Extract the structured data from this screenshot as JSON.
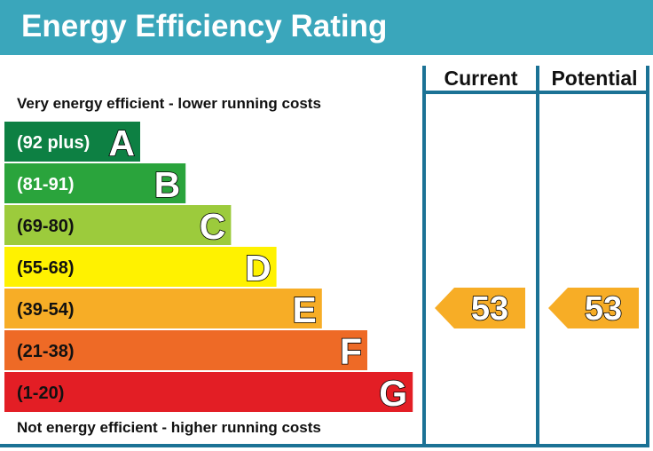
{
  "title": "Energy Efficiency Rating",
  "notes": {
    "top": "Very energy efficient - lower running costs",
    "bottom": "Not energy efficient - higher running costs"
  },
  "columns": {
    "current": "Current",
    "potential": "Potential"
  },
  "colors": {
    "header": "#3aa6bb",
    "border": "#1b7295",
    "A": "#0d8043",
    "B": "#2aa43c",
    "C": "#9ccb3c",
    "D": "#fff200",
    "E": "#f7ad26",
    "F": "#ee6a26",
    "G": "#e31e25",
    "arrow": "#f7ad26"
  },
  "chart_data": {
    "type": "table",
    "bands": [
      {
        "letter": "A",
        "range": "(92 plus)",
        "text_color": "#ffffff"
      },
      {
        "letter": "B",
        "range": "(81-91)",
        "text_color": "#ffffff"
      },
      {
        "letter": "C",
        "range": "(69-80)",
        "text_color": "#111111"
      },
      {
        "letter": "D",
        "range": "(55-68)",
        "text_color": "#111111"
      },
      {
        "letter": "E",
        "range": "(39-54)",
        "text_color": "#111111"
      },
      {
        "letter": "F",
        "range": "(21-38)",
        "text_color": "#111111"
      },
      {
        "letter": "G",
        "range": "(1-20)",
        "text_color": "#111111"
      }
    ],
    "current": {
      "value": 53,
      "band": "E"
    },
    "potential": {
      "value": 53,
      "band": "E"
    }
  }
}
